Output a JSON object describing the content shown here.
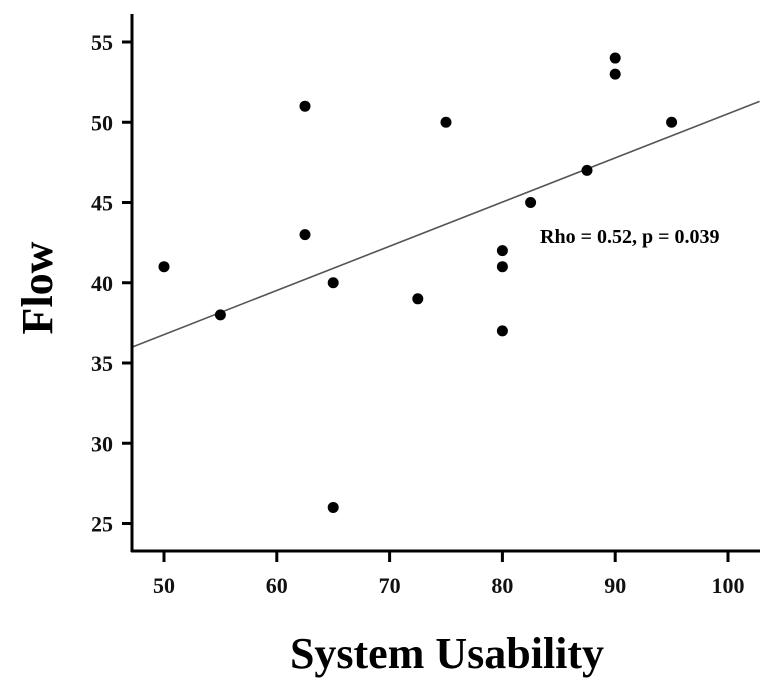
{
  "chart_data": {
    "type": "scatter",
    "title": "",
    "xlabel": "System Usability",
    "ylabel": "Flow",
    "xlim": [
      47.2,
      103
    ],
    "ylim": [
      23.2,
      56.6
    ],
    "grid": false,
    "legend": null,
    "x_ticks": [
      50,
      60,
      70,
      80,
      90,
      100
    ],
    "y_ticks": [
      25,
      30,
      35,
      40,
      45,
      50,
      55
    ],
    "points": [
      {
        "x": 50,
        "y": 41
      },
      {
        "x": 55,
        "y": 38
      },
      {
        "x": 62.5,
        "y": 51
      },
      {
        "x": 62.5,
        "y": 43
      },
      {
        "x": 65,
        "y": 40
      },
      {
        "x": 65,
        "y": 26
      },
      {
        "x": 72.5,
        "y": 39
      },
      {
        "x": 75,
        "y": 50
      },
      {
        "x": 80,
        "y": 42
      },
      {
        "x": 80,
        "y": 41
      },
      {
        "x": 80,
        "y": 37
      },
      {
        "x": 82.5,
        "y": 45
      },
      {
        "x": 87.5,
        "y": 47
      },
      {
        "x": 90,
        "y": 54
      },
      {
        "x": 90,
        "y": 53
      },
      {
        "x": 95,
        "y": 50
      }
    ],
    "regression_line": {
      "x1": 47.2,
      "y1": 36.0,
      "x2": 102.8,
      "y2": 51.3
    },
    "annotations": [
      {
        "text": "Rho = 0.52, p = 0.039",
        "x": 86,
        "y": 42.8
      }
    ],
    "colors": {
      "points": "#000000",
      "line": "#555555",
      "axis": "#000000"
    }
  }
}
